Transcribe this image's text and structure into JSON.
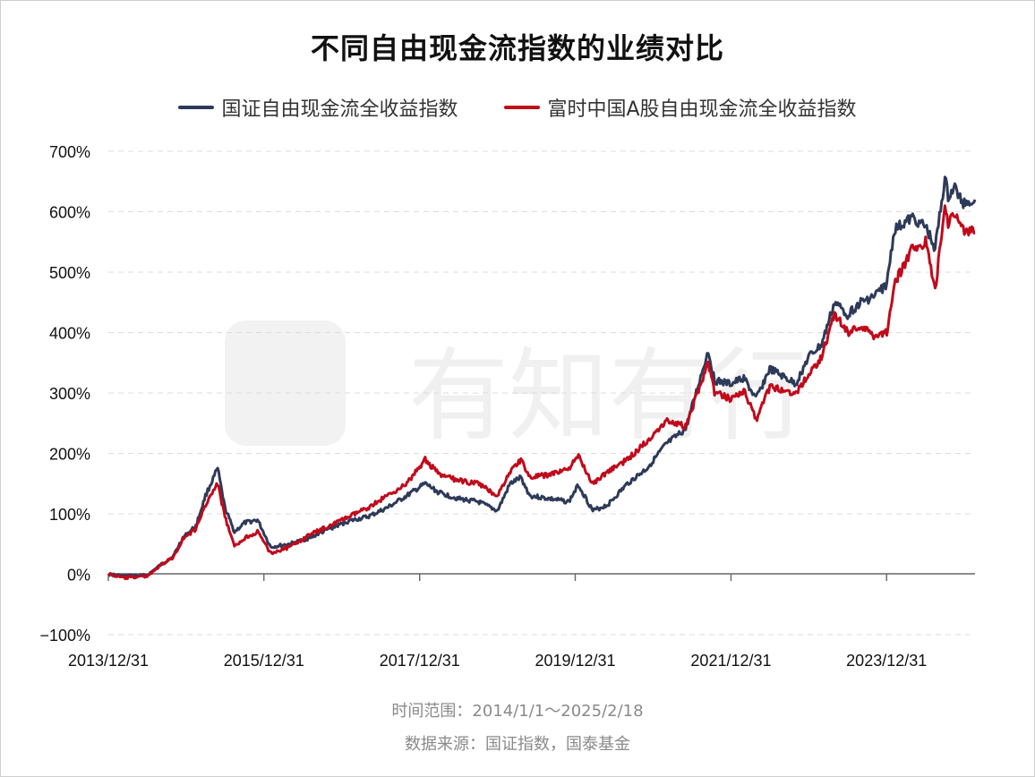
{
  "colors": {
    "series_a": "#2e3a59",
    "series_b": "#c00a1b",
    "grid": "#dcdcdc",
    "axis": "#666666"
  },
  "footer": {
    "range": "时间范围：2014/1/1～2025/2/18",
    "source": "数据来源：国证指数，国泰基金"
  },
  "watermark": "有知有行",
  "chart_data": {
    "type": "line",
    "title": "不同自由现金流指数的业绩对比",
    "xlabel": "",
    "ylabel": "",
    "x_start": "2013/12/31",
    "x_end": "2025/2/18",
    "ylim": [
      -100,
      700
    ],
    "yticks": [
      -100,
      0,
      100,
      200,
      300,
      400,
      500,
      600,
      700
    ],
    "ytick_labels": [
      "−100%",
      "0%",
      "100%",
      "200%",
      "300%",
      "400%",
      "500%",
      "600%",
      "700%"
    ],
    "xtick_labels": [
      "2013/12/31",
      "2015/12/31",
      "2017/12/31",
      "2019/12/31",
      "2021/12/31",
      "2023/12/31"
    ],
    "grid": "horizontal dashed",
    "legend_position": "top-center",
    "series": [
      {
        "name": "国证自由现金流全收益指数",
        "color": "#2e3a59",
        "points": [
          [
            "2013/12/31",
            0
          ],
          [
            "2014/3/15",
            -3
          ],
          [
            "2014/6/30",
            -2
          ],
          [
            "2014/9/1",
            15
          ],
          [
            "2014/11/1",
            30
          ],
          [
            "2014/12/15",
            60
          ],
          [
            "2015/2/15",
            80
          ],
          [
            "2015/4/1",
            130
          ],
          [
            "2015/5/28",
            175
          ],
          [
            "2015/7/1",
            110
          ],
          [
            "2015/8/15",
            70
          ],
          [
            "2015/10/1",
            85
          ],
          [
            "2015/12/1",
            90
          ],
          [
            "2016/2/1",
            45
          ],
          [
            "2016/5/1",
            50
          ],
          [
            "2016/8/1",
            60
          ],
          [
            "2016/11/1",
            75
          ],
          [
            "2017/2/1",
            88
          ],
          [
            "2017/5/1",
            95
          ],
          [
            "2017/8/1",
            110
          ],
          [
            "2017/11/1",
            130
          ],
          [
            "2018/1/26",
            150
          ],
          [
            "2018/4/1",
            135
          ],
          [
            "2018/7/1",
            125
          ],
          [
            "2018/10/1",
            120
          ],
          [
            "2018/12/31",
            105
          ],
          [
            "2019/3/1",
            150
          ],
          [
            "2019/4/20",
            160
          ],
          [
            "2019/6/1",
            130
          ],
          [
            "2019/9/1",
            125
          ],
          [
            "2019/12/1",
            120
          ],
          [
            "2020/1/15",
            148
          ],
          [
            "2020/3/23",
            105
          ],
          [
            "2020/6/1",
            115
          ],
          [
            "2020/9/1",
            150
          ],
          [
            "2020/12/1",
            175
          ],
          [
            "2021/3/1",
            215
          ],
          [
            "2021/6/1",
            240
          ],
          [
            "2021/9/15",
            370
          ],
          [
            "2021/10/15",
            320
          ],
          [
            "2021/12/31",
            315
          ],
          [
            "2022/3/1",
            325
          ],
          [
            "2022/4/27",
            290
          ],
          [
            "2022/7/1",
            340
          ],
          [
            "2022/10/31",
            315
          ],
          [
            "2022/12/31",
            360
          ],
          [
            "2023/3/1",
            380
          ],
          [
            "2023/5/1",
            450
          ],
          [
            "2023/7/1",
            430
          ],
          [
            "2023/9/1",
            450
          ],
          [
            "2023/11/1",
            460
          ],
          [
            "2024/1/1",
            480
          ],
          [
            "2024/2/5",
            570
          ],
          [
            "2024/5/1",
            590
          ],
          [
            "2024/7/1",
            575
          ],
          [
            "2024/8/15",
            540
          ],
          [
            "2024/9/30",
            655
          ],
          [
            "2024/10/15",
            625
          ],
          [
            "2024/11/15",
            640
          ],
          [
            "2024/12/20",
            615
          ],
          [
            "2025/2/18",
            620
          ]
        ]
      },
      {
        "name": "富时中国A股自由现金流全收益指数",
        "color": "#c00a1b",
        "points": [
          [
            "2013/12/31",
            0
          ],
          [
            "2014/3/15",
            -6
          ],
          [
            "2014/6/30",
            -3
          ],
          [
            "2014/9/1",
            14
          ],
          [
            "2014/11/1",
            28
          ],
          [
            "2014/12/15",
            58
          ],
          [
            "2015/2/15",
            75
          ],
          [
            "2015/4/1",
            115
          ],
          [
            "2015/5/28",
            150
          ],
          [
            "2015/7/1",
            95
          ],
          [
            "2015/8/15",
            45
          ],
          [
            "2015/10/1",
            60
          ],
          [
            "2015/12/1",
            70
          ],
          [
            "2016/2/1",
            35
          ],
          [
            "2016/5/1",
            45
          ],
          [
            "2016/8/1",
            65
          ],
          [
            "2016/11/1",
            80
          ],
          [
            "2017/2/1",
            95
          ],
          [
            "2017/5/1",
            110
          ],
          [
            "2017/8/1",
            130
          ],
          [
            "2017/11/1",
            150
          ],
          [
            "2018/1/26",
            190
          ],
          [
            "2018/4/1",
            165
          ],
          [
            "2018/7/1",
            155
          ],
          [
            "2018/10/1",
            150
          ],
          [
            "2018/12/31",
            130
          ],
          [
            "2019/3/1",
            170
          ],
          [
            "2019/4/20",
            190
          ],
          [
            "2019/6/1",
            160
          ],
          [
            "2019/9/1",
            165
          ],
          [
            "2019/12/1",
            175
          ],
          [
            "2020/1/15",
            195
          ],
          [
            "2020/3/23",
            150
          ],
          [
            "2020/6/1",
            170
          ],
          [
            "2020/9/1",
            190
          ],
          [
            "2020/12/1",
            220
          ],
          [
            "2021/3/1",
            255
          ],
          [
            "2021/6/1",
            245
          ],
          [
            "2021/9/15",
            350
          ],
          [
            "2021/10/15",
            300
          ],
          [
            "2021/12/31",
            290
          ],
          [
            "2022/3/1",
            305
          ],
          [
            "2022/4/27",
            255
          ],
          [
            "2022/7/1",
            310
          ],
          [
            "2022/10/31",
            300
          ],
          [
            "2022/12/31",
            330
          ],
          [
            "2023/3/1",
            360
          ],
          [
            "2023/5/1",
            430
          ],
          [
            "2023/7/1",
            400
          ],
          [
            "2023/9/1",
            410
          ],
          [
            "2023/11/1",
            395
          ],
          [
            "2024/1/1",
            400
          ],
          [
            "2024/2/5",
            480
          ],
          [
            "2024/5/1",
            540
          ],
          [
            "2024/7/1",
            550
          ],
          [
            "2024/8/15",
            470
          ],
          [
            "2024/9/30",
            610
          ],
          [
            "2024/10/15",
            580
          ],
          [
            "2024/11/15",
            600
          ],
          [
            "2024/12/20",
            570
          ],
          [
            "2025/2/18",
            565
          ]
        ]
      }
    ]
  }
}
